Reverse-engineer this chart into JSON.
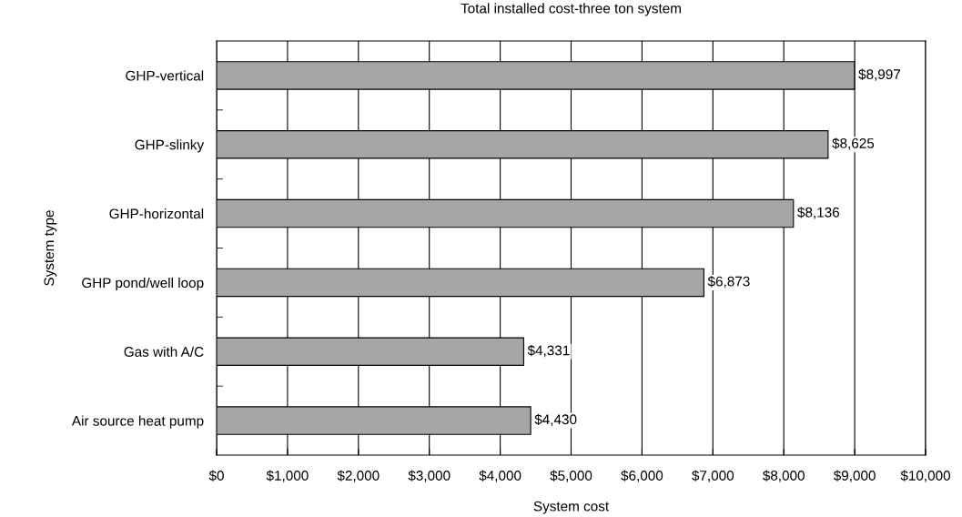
{
  "chart_data": {
    "type": "bar",
    "orientation": "horizontal",
    "title": "Total installed cost-three ton system",
    "xlabel": "System cost",
    "ylabel": "System type",
    "categories": [
      "GHP-vertical",
      "GHP-slinky",
      "GHP-horizontal",
      "GHP pond/well loop",
      "Gas with A/C",
      "Air source heat pump"
    ],
    "values": [
      8997,
      8625,
      8136,
      6873,
      4331,
      4430
    ],
    "value_labels": [
      "$8,997",
      "$8,625",
      "$8,136",
      "$6,873",
      "$4,331",
      "$4,430"
    ],
    "color": "#a6a6a6",
    "xlim": [
      0,
      10000
    ],
    "xticks": [
      {
        "value": 0,
        "label": "$0"
      },
      {
        "value": 1000,
        "label": "$1,000"
      },
      {
        "value": 2000,
        "label": "$2,000"
      },
      {
        "value": 3000,
        "label": "$3,000"
      },
      {
        "value": 4000,
        "label": "$4,000"
      },
      {
        "value": 5000,
        "label": "$5,000"
      },
      {
        "value": 6000,
        "label": "$6,000"
      },
      {
        "value": 7000,
        "label": "$7,000"
      },
      {
        "value": 8000,
        "label": "$8,000"
      },
      {
        "value": 9000,
        "label": "$9,000"
      },
      {
        "value": 10000,
        "label": "$10,000"
      }
    ],
    "grid": "x"
  }
}
